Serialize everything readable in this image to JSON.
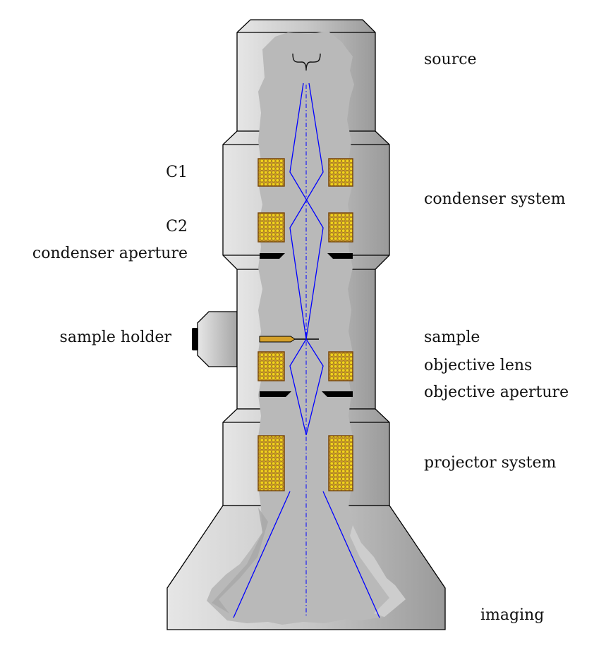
{
  "labels": {
    "source": "source",
    "condenser_system": "condenser system",
    "sample": "sample",
    "objective_lens": "objective lens",
    "objective_aperture": "objective aperture",
    "projector_system": "projector system",
    "imaging": "imaging",
    "c1": "C1",
    "c2": "C2",
    "condenser_aperture": "condenser aperture",
    "sample_holder": "sample holder"
  },
  "colors": {
    "housing_light": "#e4e4e4",
    "housing_dark": "#9a9a9a",
    "cutaway": "#b9b9b9",
    "beam": "#0000ff",
    "coil_fill": "#e8c21a",
    "coil_border": "#8a5a1a",
    "coil_frame": "#d9a441",
    "aperture": "#000000",
    "holder": "#d4a02a"
  }
}
